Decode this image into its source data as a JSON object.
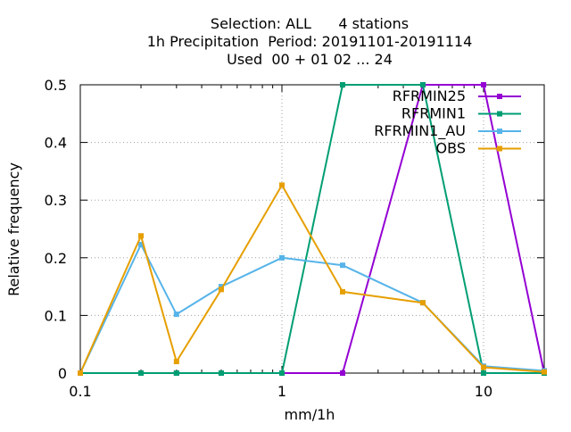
{
  "header": {
    "line1": "Selection: ALL      4 stations",
    "line2": "1h Precipitation  Period: 20191101-20191114",
    "line3": "Used  00 + 01 02 ... 24"
  },
  "chart_data": {
    "type": "line",
    "title": "Selection: ALL      4 stations / 1h Precipitation  Period: 20191101-20191114 / Used  00 + 01 02 ... 24",
    "xlabel": "mm/1h",
    "ylabel": "Relative frequency",
    "xscale": "log",
    "xlim": [
      0.1,
      20
    ],
    "ylim": [
      0,
      0.5
    ],
    "xticks": [
      0.1,
      1,
      10
    ],
    "xtick_labels": [
      "0.1",
      "1",
      "10"
    ],
    "yticks": [
      0,
      0.1,
      0.2,
      0.3,
      0.4,
      0.5
    ],
    "ytick_labels": [
      "0",
      "0.1",
      "0.2",
      "0.3",
      "0.4",
      "0.5"
    ],
    "grid": true,
    "legend_position": "top-right",
    "x": [
      0.1,
      0.2,
      0.3,
      0.5,
      1,
      2,
      5,
      10,
      20
    ],
    "series": [
      {
        "name": "RFRMIN25",
        "color": "#9400d3",
        "values": [
          0,
          0,
          0,
          0,
          0,
          0,
          0.5,
          0.5,
          0
        ]
      },
      {
        "name": "RFRMIN1",
        "color": "#009e73",
        "values": [
          0,
          0,
          0,
          0,
          0,
          0.5,
          0.5,
          0,
          0
        ]
      },
      {
        "name": "RFRMIN1_AU",
        "color": "#56b4e9",
        "values": [
          0,
          0.223,
          0.102,
          0.15,
          0.2,
          0.187,
          0.122,
          0.012,
          0.004
        ]
      },
      {
        "name": "OBS",
        "color": "#e69f00",
        "values": [
          0,
          0.238,
          0.02,
          0.145,
          0.326,
          0.141,
          0.122,
          0.01,
          0.002
        ]
      }
    ]
  }
}
